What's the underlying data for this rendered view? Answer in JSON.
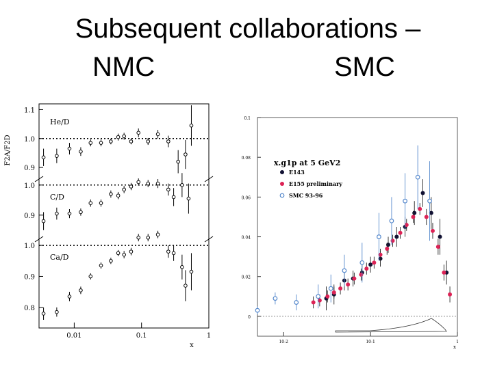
{
  "slide": {
    "title_line1": "Subsequent collaborations –",
    "label_left": "NMC",
    "label_right": "SMC"
  },
  "chart_data": [
    {
      "type": "scatter",
      "ylabel": "F2A/F2D",
      "xlabel": "x",
      "x_scale": "log",
      "xlim": [
        0.003,
        1
      ],
      "x_ticks": [
        "0.01",
        "0.1",
        "1"
      ],
      "panels": [
        {
          "label": "He/D",
          "ylim": [
            0.86,
            1.12
          ],
          "y_ticks": [
            "1.1",
            "1.0",
            "0.9"
          ],
          "reference": 1.0,
          "points": [
            {
              "x": 0.0035,
              "y": 0.935,
              "err": 0.03
            },
            {
              "x": 0.0055,
              "y": 0.94,
              "err": 0.025
            },
            {
              "x": 0.0085,
              "y": 0.965,
              "err": 0.02
            },
            {
              "x": 0.0125,
              "y": 0.955,
              "err": 0.015
            },
            {
              "x": 0.0175,
              "y": 0.985,
              "err": 0.012
            },
            {
              "x": 0.025,
              "y": 0.985,
              "err": 0.012
            },
            {
              "x": 0.035,
              "y": 0.99,
              "err": 0.01
            },
            {
              "x": 0.045,
              "y": 1.005,
              "err": 0.012
            },
            {
              "x": 0.055,
              "y": 1.008,
              "err": 0.012
            },
            {
              "x": 0.07,
              "y": 0.99,
              "err": 0.01
            },
            {
              "x": 0.09,
              "y": 1.02,
              "err": 0.015
            },
            {
              "x": 0.125,
              "y": 0.99,
              "err": 0.012
            },
            {
              "x": 0.175,
              "y": 1.015,
              "err": 0.015
            },
            {
              "x": 0.25,
              "y": 0.99,
              "err": 0.02
            },
            {
              "x": 0.35,
              "y": 0.92,
              "err": 0.04
            },
            {
              "x": 0.45,
              "y": 0.945,
              "err": 0.05
            },
            {
              "x": 0.55,
              "y": 1.045,
              "err": 0.07
            }
          ]
        },
        {
          "label": "C/D",
          "ylim": [
            0.82,
            1.02
          ],
          "y_ticks": [
            "1.0",
            "0.9"
          ],
          "reference": 1.0,
          "points": [
            {
              "x": 0.0035,
              "y": 0.88,
              "err": 0.03
            },
            {
              "x": 0.0055,
              "y": 0.905,
              "err": 0.02
            },
            {
              "x": 0.0085,
              "y": 0.905,
              "err": 0.015
            },
            {
              "x": 0.0125,
              "y": 0.91,
              "err": 0.012
            },
            {
              "x": 0.0175,
              "y": 0.94,
              "err": 0.012
            },
            {
              "x": 0.025,
              "y": 0.94,
              "err": 0.012
            },
            {
              "x": 0.035,
              "y": 0.97,
              "err": 0.012
            },
            {
              "x": 0.045,
              "y": 0.965,
              "err": 0.012
            },
            {
              "x": 0.055,
              "y": 0.985,
              "err": 0.012
            },
            {
              "x": 0.07,
              "y": 0.995,
              "err": 0.012
            },
            {
              "x": 0.09,
              "y": 1.01,
              "err": 0.012
            },
            {
              "x": 0.125,
              "y": 1.005,
              "err": 0.012
            },
            {
              "x": 0.175,
              "y": 1.005,
              "err": 0.015
            },
            {
              "x": 0.25,
              "y": 0.985,
              "err": 0.02
            },
            {
              "x": 0.3,
              "y": 0.96,
              "err": 0.03
            },
            {
              "x": 0.4,
              "y": 1.0,
              "err": 0.04
            },
            {
              "x": 0.5,
              "y": 0.955,
              "err": 0.05
            }
          ]
        },
        {
          "label": "Ca/D",
          "ylim": [
            0.76,
            1.02
          ],
          "y_ticks": [
            "1.0",
            "0.9",
            "0.8"
          ],
          "reference": 1.0,
          "points": [
            {
              "x": 0.0035,
              "y": 0.78,
              "err": 0.02
            },
            {
              "x": 0.0055,
              "y": 0.785,
              "err": 0.015
            },
            {
              "x": 0.0085,
              "y": 0.835,
              "err": 0.015
            },
            {
              "x": 0.0125,
              "y": 0.855,
              "err": 0.012
            },
            {
              "x": 0.0175,
              "y": 0.9,
              "err": 0.01
            },
            {
              "x": 0.025,
              "y": 0.935,
              "err": 0.01
            },
            {
              "x": 0.035,
              "y": 0.95,
              "err": 0.01
            },
            {
              "x": 0.045,
              "y": 0.975,
              "err": 0.01
            },
            {
              "x": 0.055,
              "y": 0.97,
              "err": 0.012
            },
            {
              "x": 0.07,
              "y": 0.98,
              "err": 0.012
            },
            {
              "x": 0.09,
              "y": 1.025,
              "err": 0.012
            },
            {
              "x": 0.125,
              "y": 1.025,
              "err": 0.012
            },
            {
              "x": 0.175,
              "y": 1.035,
              "err": 0.012
            },
            {
              "x": 0.25,
              "y": 0.98,
              "err": 0.02
            },
            {
              "x": 0.3,
              "y": 0.975,
              "err": 0.025
            },
            {
              "x": 0.4,
              "y": 0.93,
              "err": 0.04
            },
            {
              "x": 0.45,
              "y": 0.87,
              "err": 0.05
            },
            {
              "x": 0.55,
              "y": 0.915,
              "err": 0.06
            }
          ]
        }
      ]
    },
    {
      "type": "scatter",
      "annotation": "x.g1p at 5 GeV2",
      "xlabel": "x",
      "x_scale": "log",
      "xlim": [
        0.005,
        1
      ],
      "x_ticks": [
        "10-2",
        "10-1",
        "1"
      ],
      "ylim": [
        -0.01,
        0.1
      ],
      "y_ticks": [
        "0",
        "0.02",
        "0.04",
        "0.06",
        "0.08",
        "0.1"
      ],
      "legend": "top-left",
      "series": [
        {
          "name": "E143",
          "color": "#111133",
          "marker": "filled",
          "points": [
            {
              "x": 0.031,
              "y": 0.009,
              "err": 0.006
            },
            {
              "x": 0.038,
              "y": 0.011,
              "err": 0.005
            },
            {
              "x": 0.05,
              "y": 0.018,
              "err": 0.005
            },
            {
              "x": 0.063,
              "y": 0.019,
              "err": 0.004
            },
            {
              "x": 0.08,
              "y": 0.022,
              "err": 0.004
            },
            {
              "x": 0.1,
              "y": 0.026,
              "err": 0.004
            },
            {
              "x": 0.13,
              "y": 0.029,
              "err": 0.004
            },
            {
              "x": 0.16,
              "y": 0.036,
              "err": 0.004
            },
            {
              "x": 0.2,
              "y": 0.04,
              "err": 0.005
            },
            {
              "x": 0.25,
              "y": 0.045,
              "err": 0.005
            },
            {
              "x": 0.32,
              "y": 0.052,
              "err": 0.006
            },
            {
              "x": 0.4,
              "y": 0.062,
              "err": 0.007
            },
            {
              "x": 0.5,
              "y": 0.052,
              "err": 0.008
            },
            {
              "x": 0.63,
              "y": 0.04,
              "err": 0.009
            },
            {
              "x": 0.75,
              "y": 0.022,
              "err": 0.006
            }
          ]
        },
        {
          "name": "E155 preliminary",
          "color": "#dd2255",
          "marker": "filled",
          "points": [
            {
              "x": 0.022,
              "y": 0.007,
              "err": 0.003
            },
            {
              "x": 0.026,
              "y": 0.008,
              "err": 0.003
            },
            {
              "x": 0.032,
              "y": 0.01,
              "err": 0.003
            },
            {
              "x": 0.038,
              "y": 0.012,
              "err": 0.003
            },
            {
              "x": 0.045,
              "y": 0.014,
              "err": 0.003
            },
            {
              "x": 0.055,
              "y": 0.016,
              "err": 0.003
            },
            {
              "x": 0.065,
              "y": 0.019,
              "err": 0.003
            },
            {
              "x": 0.078,
              "y": 0.021,
              "err": 0.003
            },
            {
              "x": 0.09,
              "y": 0.024,
              "err": 0.003
            },
            {
              "x": 0.11,
              "y": 0.027,
              "err": 0.003
            },
            {
              "x": 0.13,
              "y": 0.031,
              "err": 0.003
            },
            {
              "x": 0.155,
              "y": 0.034,
              "err": 0.003
            },
            {
              "x": 0.18,
              "y": 0.038,
              "err": 0.003
            },
            {
              "x": 0.22,
              "y": 0.042,
              "err": 0.003
            },
            {
              "x": 0.26,
              "y": 0.046,
              "err": 0.003
            },
            {
              "x": 0.31,
              "y": 0.05,
              "err": 0.003
            },
            {
              "x": 0.37,
              "y": 0.054,
              "err": 0.003
            },
            {
              "x": 0.44,
              "y": 0.05,
              "err": 0.004
            },
            {
              "x": 0.52,
              "y": 0.043,
              "err": 0.004
            },
            {
              "x": 0.6,
              "y": 0.035,
              "err": 0.004
            },
            {
              "x": 0.7,
              "y": 0.022,
              "err": 0.004
            },
            {
              "x": 0.82,
              "y": 0.011,
              "err": 0.004
            }
          ]
        },
        {
          "name": "SMC 93-96",
          "color": "#5588cc",
          "marker": "open",
          "points": [
            {
              "x": 0.005,
              "y": 0.003,
              "err": 0.002
            },
            {
              "x": 0.008,
              "y": 0.009,
              "err": 0.003
            },
            {
              "x": 0.014,
              "y": 0.007,
              "err": 0.004
            },
            {
              "x": 0.025,
              "y": 0.01,
              "err": 0.006
            },
            {
              "x": 0.035,
              "y": 0.014,
              "err": 0.007
            },
            {
              "x": 0.05,
              "y": 0.023,
              "err": 0.008
            },
            {
              "x": 0.08,
              "y": 0.027,
              "err": 0.01
            },
            {
              "x": 0.125,
              "y": 0.04,
              "err": 0.012
            },
            {
              "x": 0.175,
              "y": 0.048,
              "err": 0.012
            },
            {
              "x": 0.25,
              "y": 0.058,
              "err": 0.014
            },
            {
              "x": 0.35,
              "y": 0.07,
              "err": 0.016
            },
            {
              "x": 0.48,
              "y": 0.058,
              "err": 0.02
            }
          ]
        }
      ]
    }
  ]
}
